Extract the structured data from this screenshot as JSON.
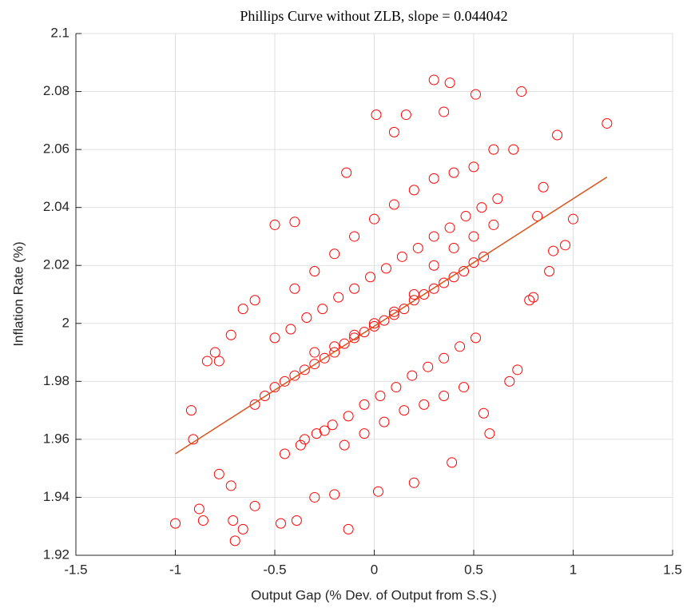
{
  "chart_data": {
    "type": "scatter",
    "title": "Phillips Curve without ZLB, slope = 0.044042",
    "xlabel": "Output Gap (% Dev. of Output from S.S.)",
    "ylabel": "Inflation Rate (%)",
    "xlim": [
      -1.5,
      1.5
    ],
    "ylim": [
      1.92,
      2.1
    ],
    "xticks": [
      -1.5,
      -1,
      -0.5,
      0,
      0.5,
      1,
      1.5
    ],
    "yticks": [
      1.92,
      1.94,
      1.96,
      1.98,
      2,
      2.02,
      2.04,
      2.06,
      2.08,
      2.1
    ],
    "grid": true,
    "series": [
      {
        "type": "scatter",
        "color": "#ff0000",
        "x": [
          -1.0,
          -0.92,
          -0.88,
          -0.86,
          -0.91,
          -0.84,
          -0.7,
          -0.71,
          -0.66,
          -0.72,
          -0.78,
          -0.6,
          -0.47,
          -0.39,
          -0.13,
          -0.5,
          -0.4,
          -0.14,
          0.01,
          0.1,
          0.16,
          0.3,
          0.38,
          0.35,
          0.51,
          0.74,
          0.92,
          1.17,
          1.0,
          0.9,
          0.96,
          0.88,
          0.78,
          0.8,
          0.68,
          0.72,
          0.55,
          0.58,
          0.39,
          0.2,
          0.02,
          -0.2,
          -0.3,
          0.6,
          0.7,
          0.82,
          0.85,
          -0.66,
          -0.72,
          -0.78,
          -0.8,
          -0.6,
          -0.6,
          -0.55,
          -0.5,
          -0.45,
          -0.4,
          -0.35,
          -0.3,
          -0.25,
          -0.2,
          -0.15,
          -0.1,
          -0.05,
          0,
          0.05,
          0.1,
          0.15,
          0.2,
          0.25,
          0.3,
          0.35,
          0.4,
          0.45,
          0.5,
          0.55,
          -0.5,
          -0.42,
          -0.34,
          -0.26,
          -0.18,
          -0.1,
          -0.02,
          0.06,
          0.14,
          0.22,
          0.3,
          0.38,
          0.46,
          0.54,
          0.62,
          -0.45,
          -0.37,
          -0.29,
          -0.21,
          -0.13,
          -0.05,
          0.03,
          0.11,
          0.19,
          0.27,
          0.35,
          0.43,
          0.51,
          -0.4,
          -0.3,
          -0.2,
          -0.1,
          0,
          0.1,
          0.2,
          0.3,
          0.4,
          0.5,
          -0.35,
          -0.25,
          -0.15,
          -0.05,
          0.05,
          0.15,
          0.25,
          0.35,
          0.45,
          -0.3,
          -0.2,
          -0.1,
          0,
          0.1,
          0.2,
          0.3,
          0.4,
          0.5,
          0.6
        ],
        "y": [
          1.931,
          1.97,
          1.936,
          1.932,
          1.96,
          1.987,
          1.925,
          1.932,
          1.929,
          1.944,
          1.948,
          1.937,
          1.931,
          1.932,
          1.929,
          2.034,
          2.035,
          2.052,
          2.072,
          2.066,
          2.072,
          2.084,
          2.083,
          2.073,
          2.079,
          2.08,
          2.065,
          2.069,
          2.036,
          2.025,
          2.027,
          2.018,
          2.008,
          2.009,
          1.98,
          1.984,
          1.969,
          1.962,
          1.952,
          1.945,
          1.942,
          1.941,
          1.94,
          2.06,
          2.06,
          2.037,
          2.047,
          2.005,
          1.996,
          1.987,
          1.99,
          2.008,
          1.972,
          1.975,
          1.978,
          1.98,
          1.982,
          1.984,
          1.986,
          1.988,
          1.99,
          1.993,
          1.995,
          1.997,
          1.999,
          2.001,
          2.003,
          2.005,
          2.008,
          2.01,
          2.012,
          2.014,
          2.016,
          2.018,
          2.021,
          2.023,
          1.995,
          1.998,
          2.002,
          2.005,
          2.009,
          2.012,
          2.016,
          2.019,
          2.023,
          2.026,
          2.03,
          2.033,
          2.037,
          2.04,
          2.043,
          1.955,
          1.958,
          1.962,
          1.965,
          1.968,
          1.972,
          1.975,
          1.978,
          1.982,
          1.985,
          1.988,
          1.992,
          1.995,
          2.012,
          2.018,
          2.024,
          2.03,
          2.036,
          2.041,
          2.046,
          2.05,
          2.052,
          2.054,
          1.96,
          1.963,
          1.958,
          1.962,
          1.966,
          1.97,
          1.972,
          1.975,
          1.978,
          1.99,
          1.992,
          1.996,
          2,
          2.004,
          2.01,
          2.02,
          2.026,
          2.03,
          2.034
        ]
      },
      {
        "type": "line",
        "color": "#d95319",
        "x": [
          -1.0,
          1.17
        ],
        "y": [
          1.955,
          2.0505
        ]
      }
    ]
  }
}
